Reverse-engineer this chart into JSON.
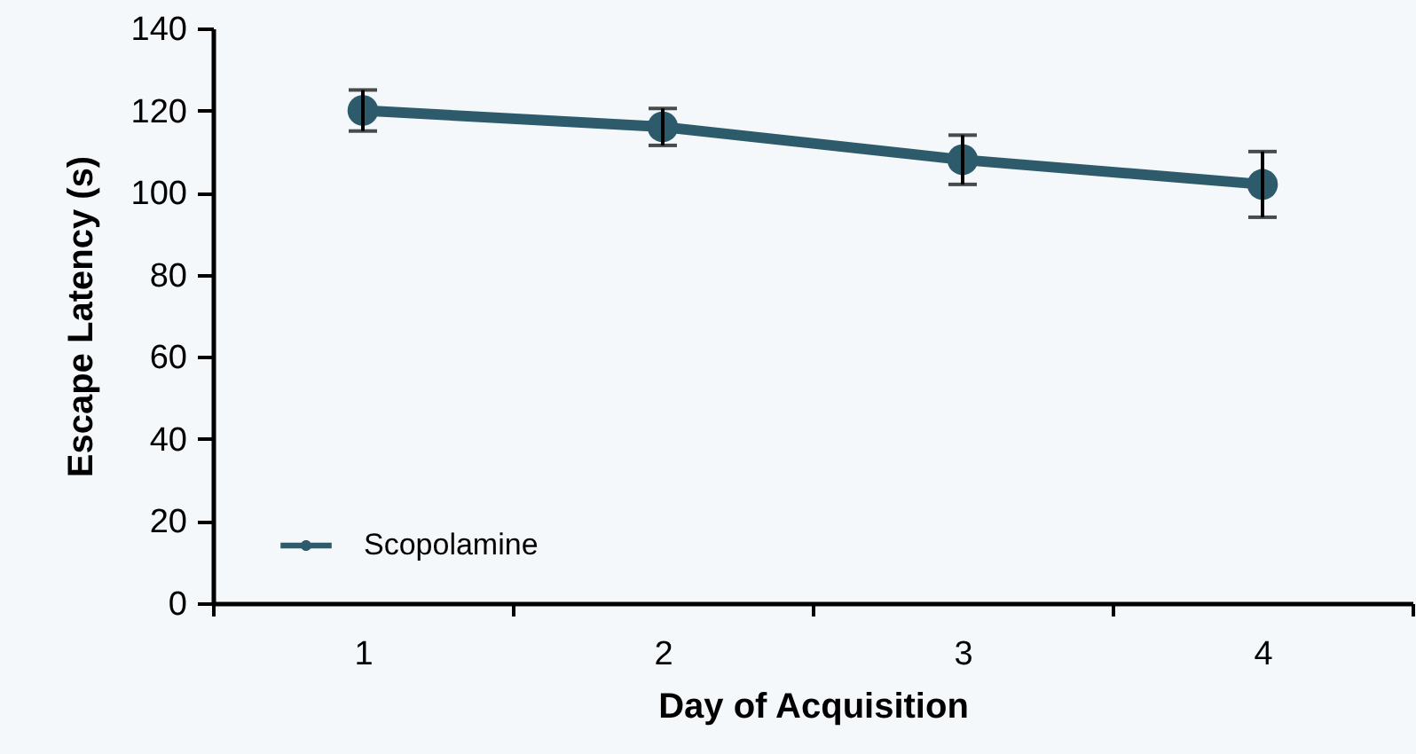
{
  "chart_data": {
    "type": "line",
    "xlabel": "Day of Acquisition",
    "ylabel": "Escape Latency (s)",
    "categories": [
      "1",
      "2",
      "3",
      "4"
    ],
    "series": [
      {
        "name": "Scopolamine",
        "color": "#2e5b6b",
        "values": [
          120,
          116,
          108,
          102
        ],
        "errors": [
          5,
          4.5,
          6,
          8
        ]
      }
    ],
    "ylim": [
      0,
      140
    ],
    "yticks": [
      0,
      20,
      40,
      60,
      80,
      100,
      120,
      140
    ],
    "grid": false,
    "legend": "bottom left",
    "marker": "circle",
    "line_style": "solid"
  }
}
